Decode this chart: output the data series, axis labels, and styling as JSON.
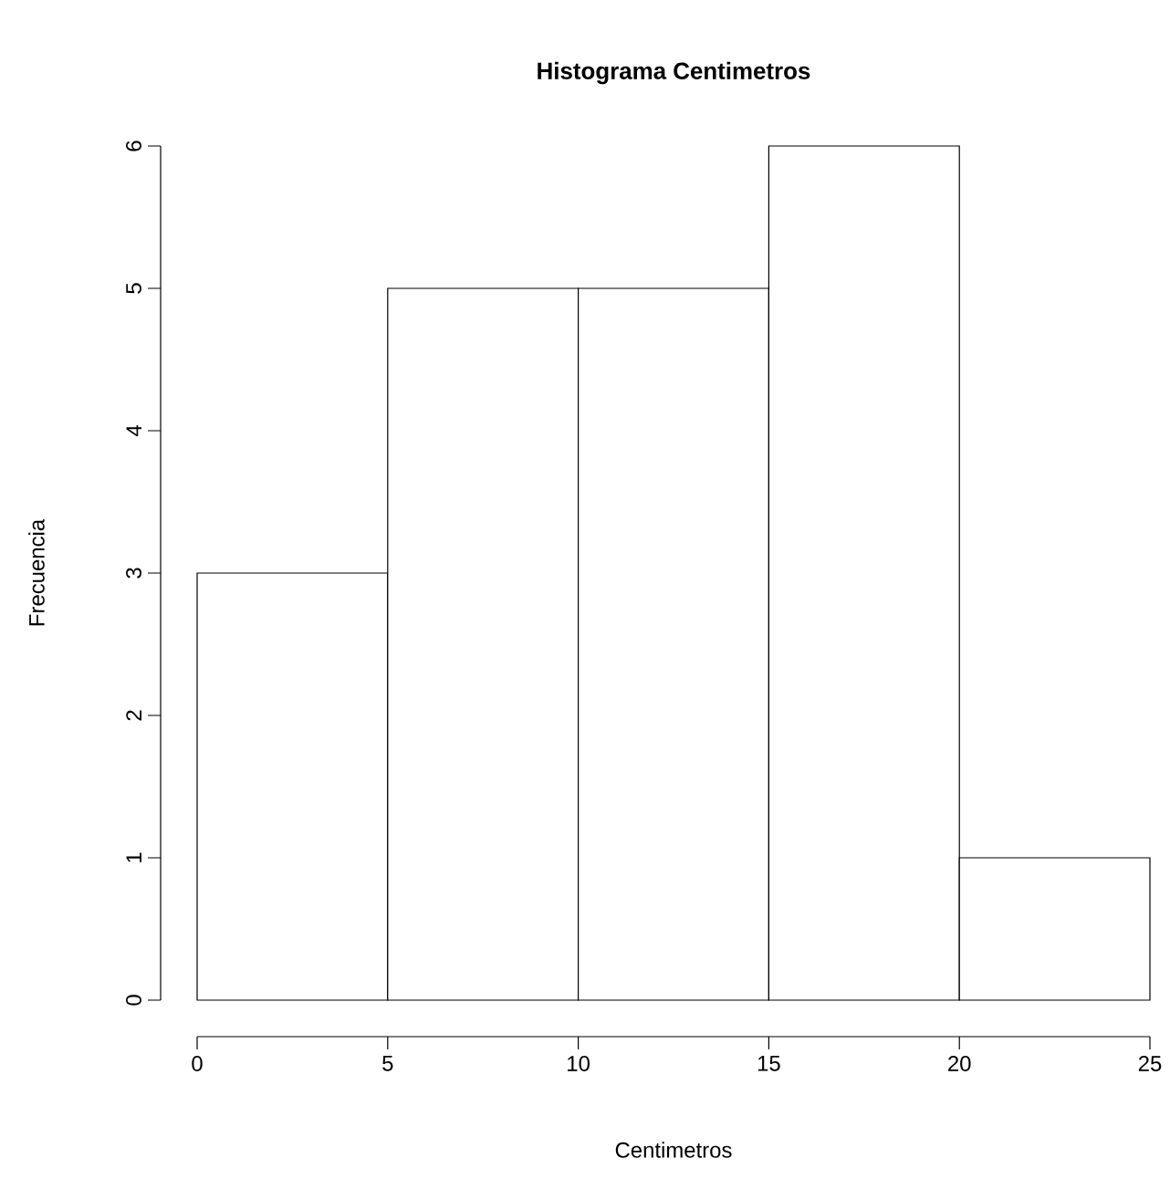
{
  "chart_data": {
    "type": "histogram",
    "title": "Histograma Centimetros",
    "xlabel": "Centimetros",
    "ylabel": "Frecuencia",
    "bins": [
      0,
      5,
      10,
      15,
      20,
      25
    ],
    "values": [
      3,
      5,
      5,
      6,
      1
    ],
    "color": "#ffffff",
    "xlim": [
      0,
      25
    ],
    "ylim": [
      0,
      6
    ],
    "xticks": [
      0,
      5,
      10,
      15,
      20,
      25
    ],
    "yticks": [
      0,
      1,
      2,
      3,
      4,
      5,
      6
    ]
  }
}
